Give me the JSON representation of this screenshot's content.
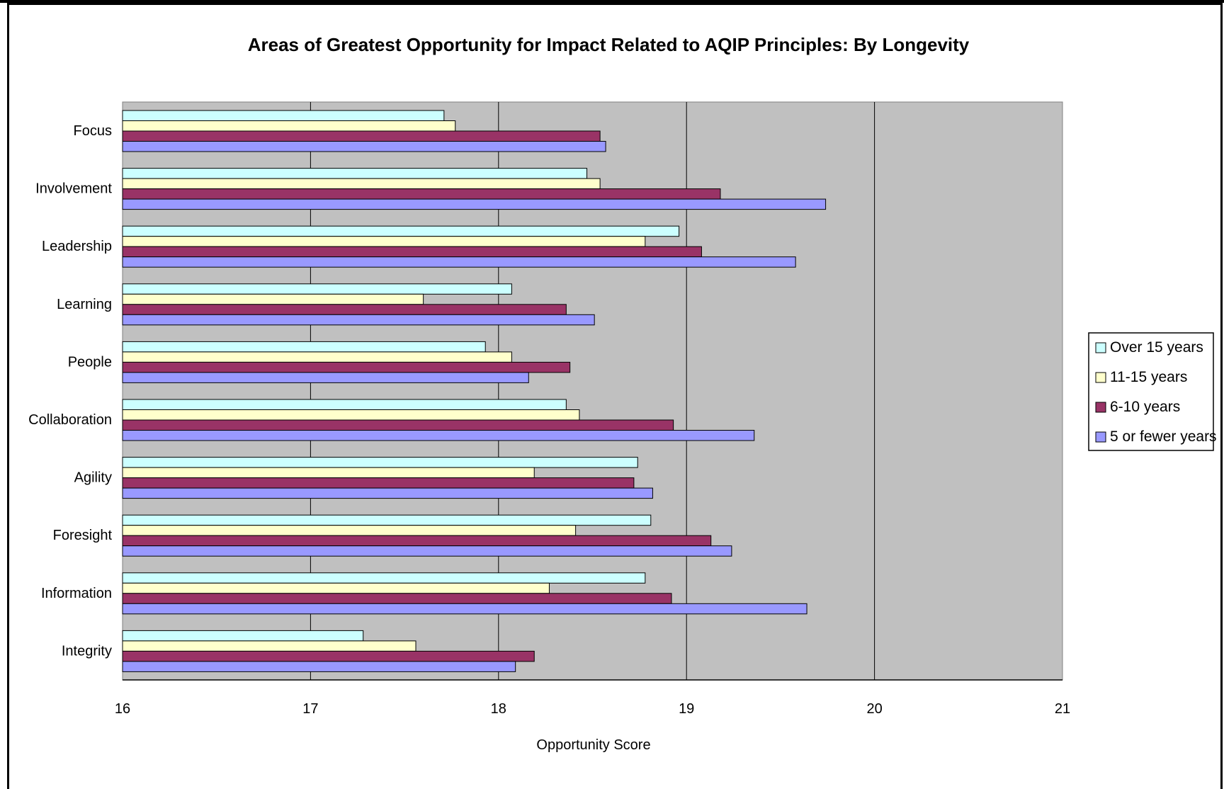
{
  "chart_data": {
    "type": "bar",
    "orientation": "horizontal",
    "title": "Areas of Greatest Opportunity for Impact Related to AQIP Principles: By Longevity",
    "xlabel": "Opportunity Score",
    "ylabel": "",
    "xlim": [
      16,
      21
    ],
    "xticks": [
      "16",
      "17",
      "18",
      "19",
      "20",
      "21"
    ],
    "grid": true,
    "legend_position": "right",
    "categories": [
      "Focus",
      "Involvement",
      "Leadership",
      "Learning",
      "People",
      "Collaboration",
      "Agility",
      "Foresight",
      "Information",
      "Integrity"
    ],
    "series": [
      {
        "name": "Over 15 years",
        "color": "#ccffff",
        "values": [
          17.71,
          18.47,
          18.96,
          18.07,
          17.93,
          18.36,
          18.74,
          18.81,
          18.78,
          17.28
        ]
      },
      {
        "name": "11-15 years",
        "color": "#ffffcc",
        "values": [
          17.77,
          18.54,
          18.78,
          17.6,
          18.07,
          18.43,
          18.19,
          18.41,
          18.27,
          17.56
        ]
      },
      {
        "name": "6-10 years",
        "color": "#993366",
        "values": [
          18.54,
          19.18,
          19.08,
          18.36,
          18.38,
          18.93,
          18.72,
          19.13,
          18.92,
          18.19
        ]
      },
      {
        "name": "5 or fewer years",
        "color": "#9999ff",
        "values": [
          18.57,
          19.74,
          19.58,
          18.51,
          18.16,
          19.36,
          18.82,
          19.24,
          19.64,
          18.09
        ]
      }
    ]
  }
}
